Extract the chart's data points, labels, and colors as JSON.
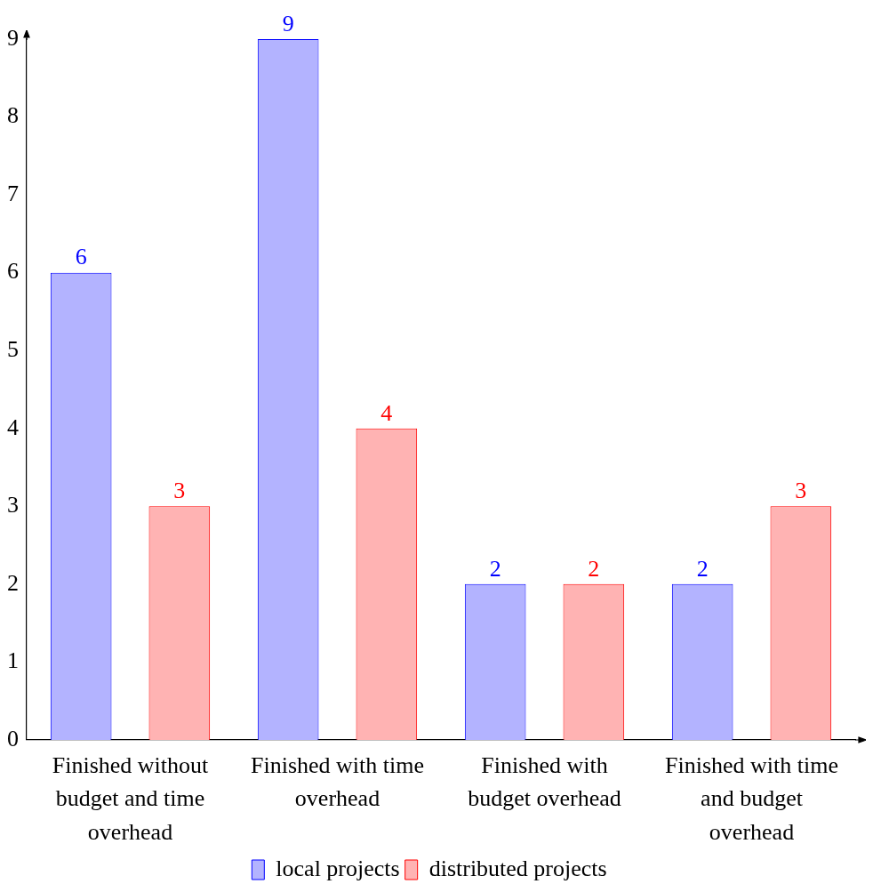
{
  "chart_data": {
    "type": "bar",
    "categories": [
      "Finished without budget and time overhead",
      "Finished with time overhead",
      "Finished with budget overhead",
      "Finished with time and budget overhead"
    ],
    "series": [
      {
        "name": "local projects",
        "color": "#b3b3ff",
        "values": [
          6,
          9,
          2,
          2
        ]
      },
      {
        "name": "distributed projects",
        "color": "#ffb3b3",
        "values": [
          3,
          4,
          2,
          3
        ]
      }
    ],
    "ylim": [
      0,
      9
    ],
    "yticks": [
      0,
      1,
      2,
      3,
      4,
      5,
      6,
      7,
      8,
      9
    ],
    "grid": false,
    "legend": "bottom",
    "data_labels": true
  }
}
